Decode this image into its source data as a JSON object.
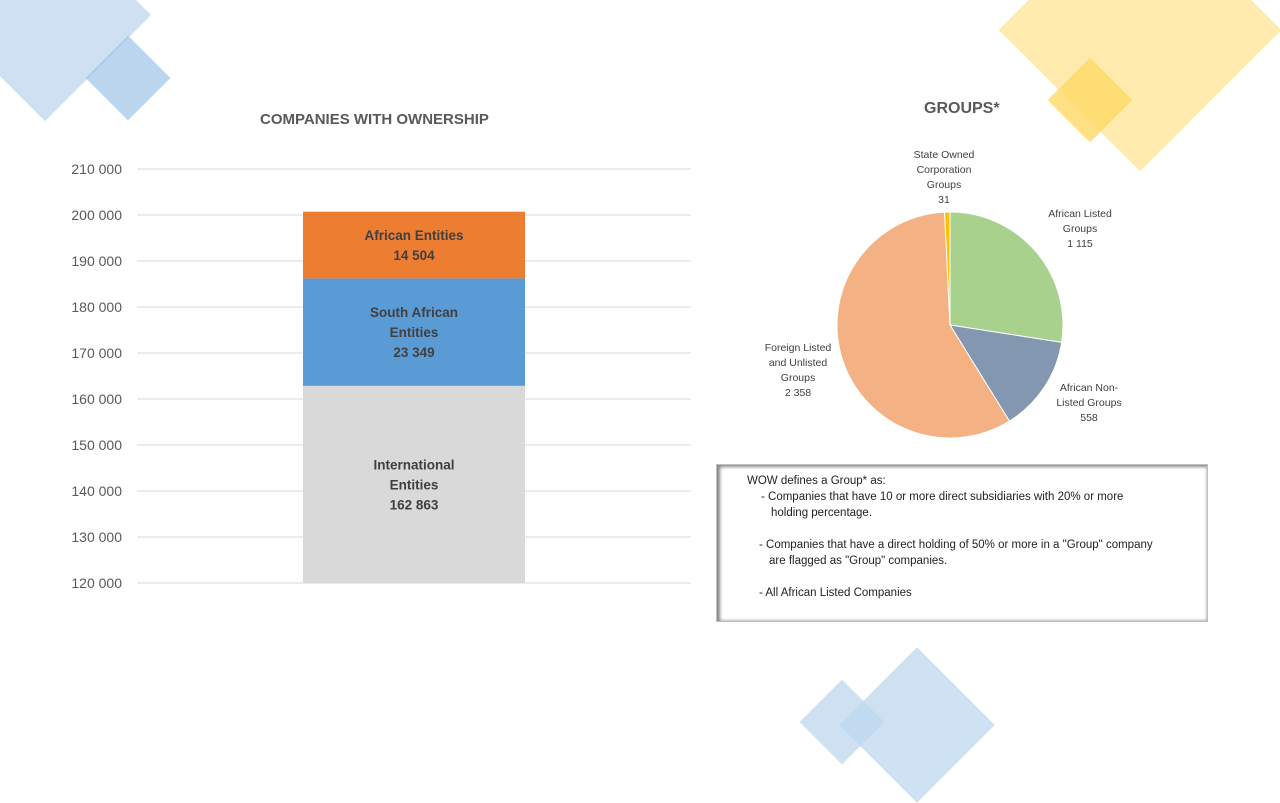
{
  "colors": {
    "blue_deco": "#bdd7ee",
    "yellow_deco": "#ffe699",
    "african": "#ed7d31",
    "south_african": "#5b9bd5",
    "international": "#d9d9d9",
    "pie_green": "#a9d18e",
    "pie_slate": "#8497b0",
    "pie_peach": "#f4b183",
    "pie_gold": "#ffc000"
  },
  "chart_data": [
    {
      "type": "bar",
      "stacked": true,
      "title": "COMPANIES WITH OWNERSHIP",
      "ylim": [
        120000,
        210000
      ],
      "yticks": [
        "120 000",
        "130 000",
        "140 000",
        "150 000",
        "160 000",
        "170 000",
        "180 000",
        "190 000",
        "200 000",
        "210 000"
      ],
      "ytick_values": [
        120000,
        130000,
        140000,
        150000,
        160000,
        170000,
        180000,
        190000,
        200000,
        210000
      ],
      "grid": true,
      "series": [
        {
          "name": "International Entities",
          "label_lines": [
            "International",
            "Entities",
            "162 863"
          ],
          "value": 162863
        },
        {
          "name": "South African Entities",
          "label_lines": [
            "South African",
            "Entities",
            "23 349"
          ],
          "value": 23349
        },
        {
          "name": "African Entities",
          "label_lines": [
            "African Entities",
            "14 504"
          ],
          "value": 14504
        }
      ]
    },
    {
      "type": "pie",
      "title": "GROUPS*",
      "slices": [
        {
          "name": "African Listed Groups",
          "label_lines": [
            "African Listed",
            "Groups",
            "1 115"
          ],
          "value": 1115
        },
        {
          "name": "African Non-Listed Groups",
          "label_lines": [
            "African Non-",
            "Listed Groups",
            "558"
          ],
          "value": 558
        },
        {
          "name": "Foreign Listed and Unlisted Groups",
          "label_lines": [
            "Foreign Listed",
            "and Unlisted",
            "Groups",
            "2 358"
          ],
          "value": 2358
        },
        {
          "name": "State Owned Corporation Groups",
          "label_lines": [
            "State Owned",
            "Corporation",
            "Groups",
            "31"
          ],
          "value": 31
        }
      ]
    }
  ],
  "note": {
    "heading": "WOW defines a Group* as:",
    "items": [
      [
        "-  Companies that have 10 or more direct subsidiaries with 20% or more",
        "   holding percentage."
      ],
      [
        "-   Companies that have a direct holding of 50% or more  in a \"Group\" company",
        "    are flagged as \"Group\" companies."
      ],
      [
        "-  All  African Listed Companies"
      ]
    ]
  }
}
